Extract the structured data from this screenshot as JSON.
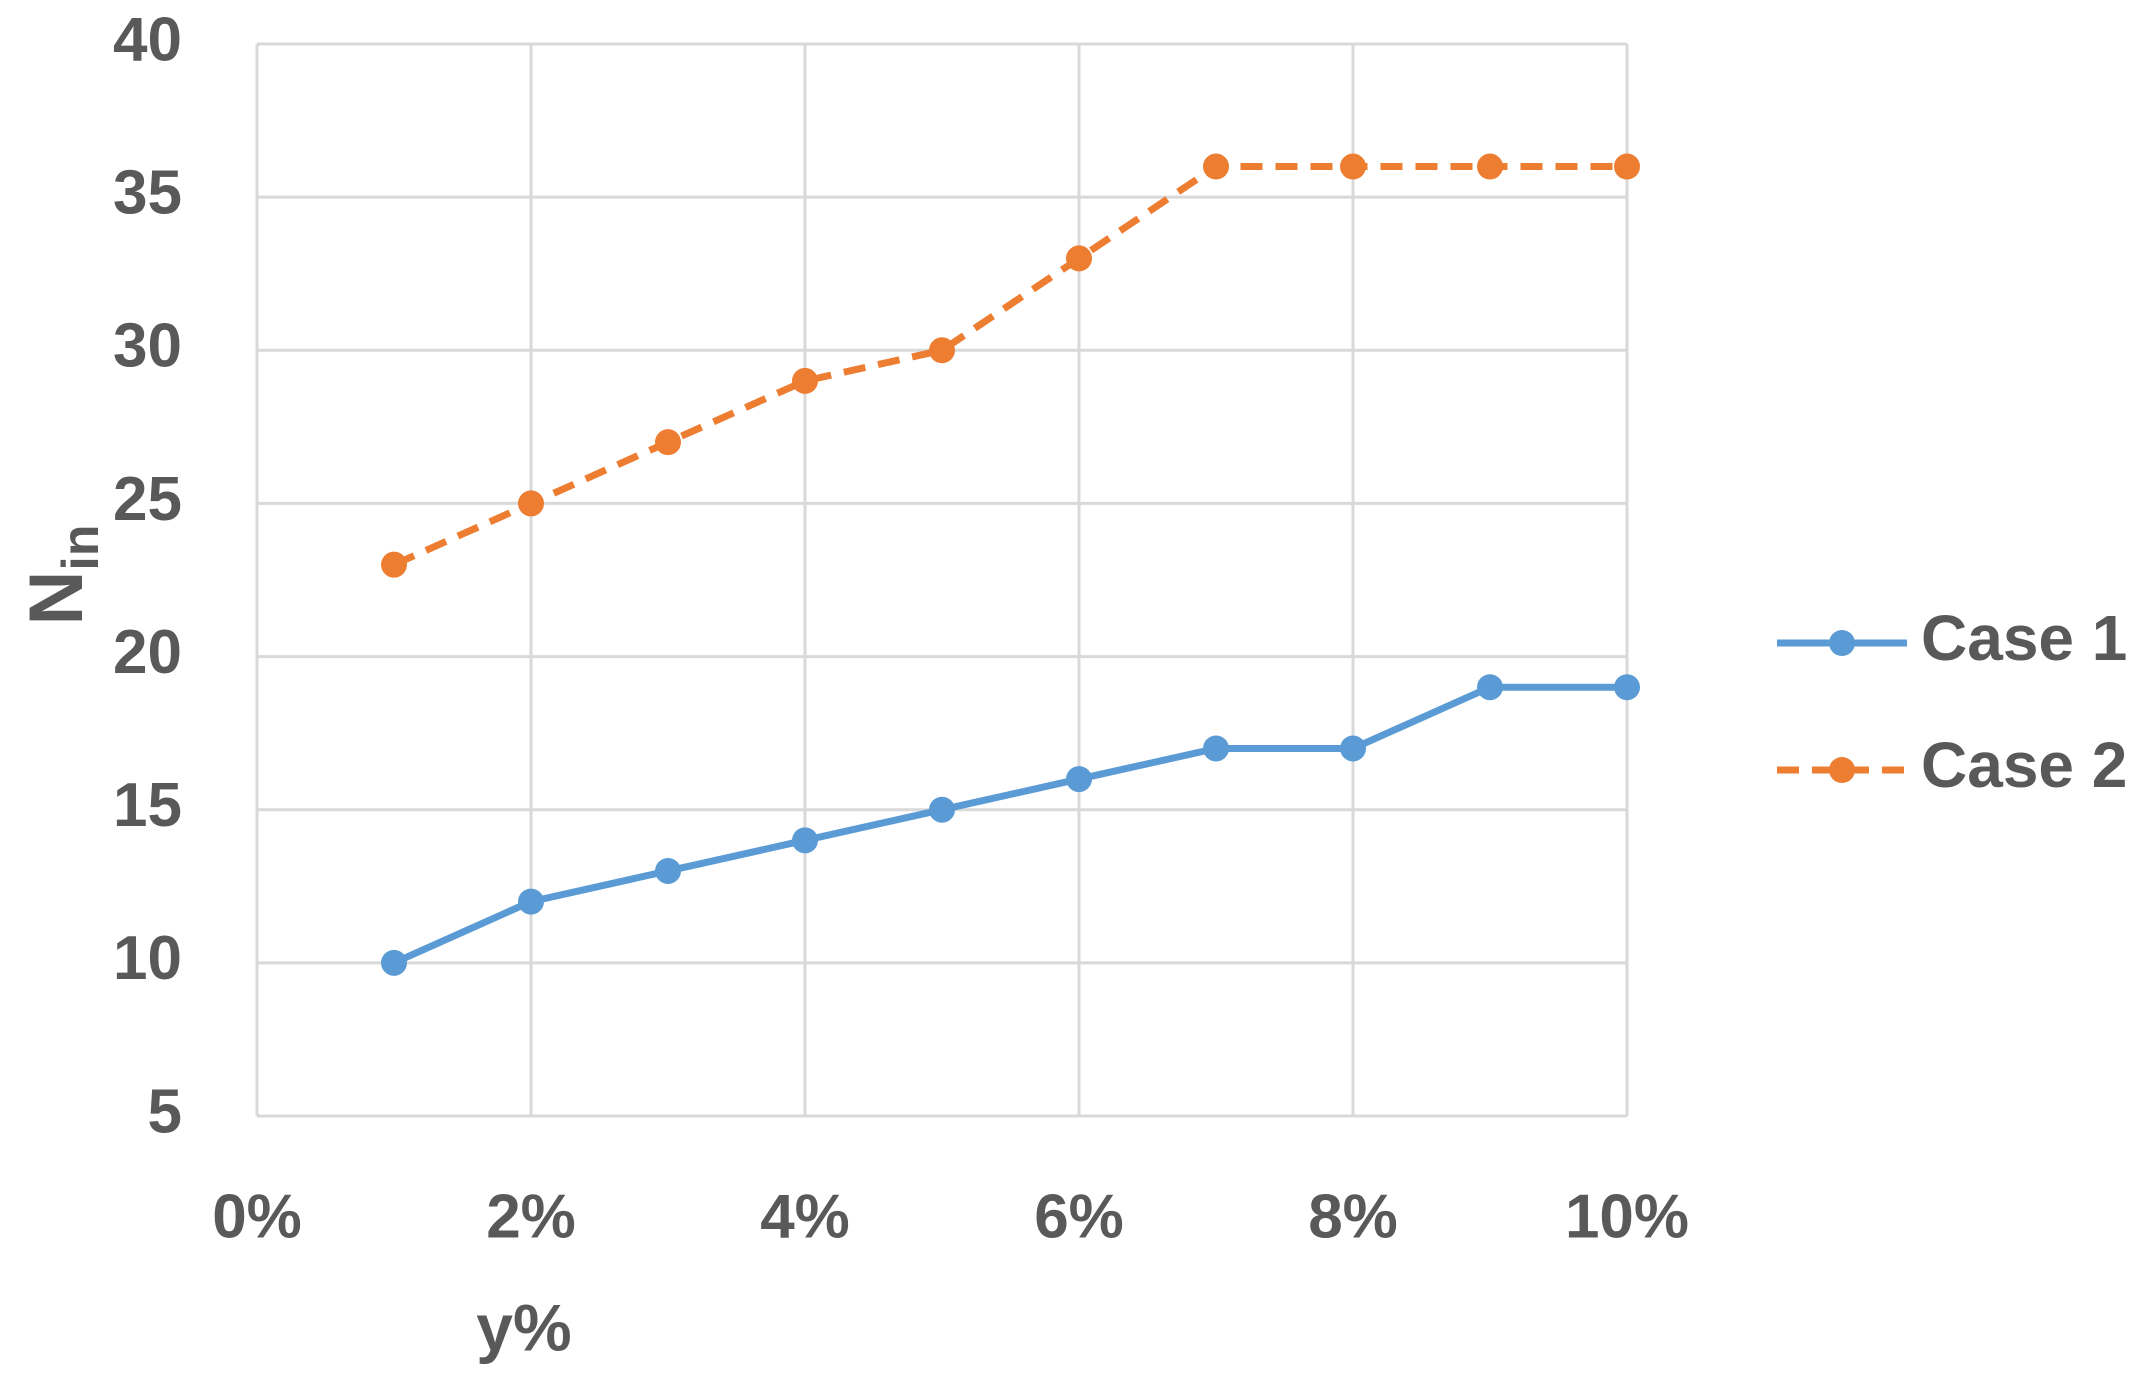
{
  "chart_data": {
    "type": "line",
    "xlabel": "y%",
    "ylabel": "N",
    "ylabel_subscript": "in",
    "x": [
      1,
      2,
      3,
      4,
      5,
      6,
      7,
      8,
      9,
      10
    ],
    "series": [
      {
        "name": "Case 1",
        "color": "#5b9bd5",
        "dash": false,
        "values": [
          10,
          12,
          13,
          14,
          15,
          16,
          17,
          17,
          19,
          19
        ]
      },
      {
        "name": "Case 2",
        "color": "#ed7d31",
        "dash": true,
        "values": [
          23,
          25,
          27,
          29,
          30,
          33,
          36,
          36,
          36,
          36
        ]
      }
    ],
    "xlim": [
      0,
      10
    ],
    "xticks": [
      {
        "value": 0,
        "label": "0%"
      },
      {
        "value": 2,
        "label": "2%"
      },
      {
        "value": 4,
        "label": "4%"
      },
      {
        "value": 6,
        "label": "6%"
      },
      {
        "value": 8,
        "label": "8%"
      },
      {
        "value": 10,
        "label": "10%"
      }
    ],
    "ylim": [
      5,
      40
    ],
    "yticks": [
      5,
      10,
      15,
      20,
      25,
      30,
      35,
      40
    ],
    "xgrid_step_ticks": [
      1,
      2,
      3,
      4,
      5,
      6,
      7,
      8,
      9,
      10
    ],
    "grid": true,
    "legend": "right"
  }
}
